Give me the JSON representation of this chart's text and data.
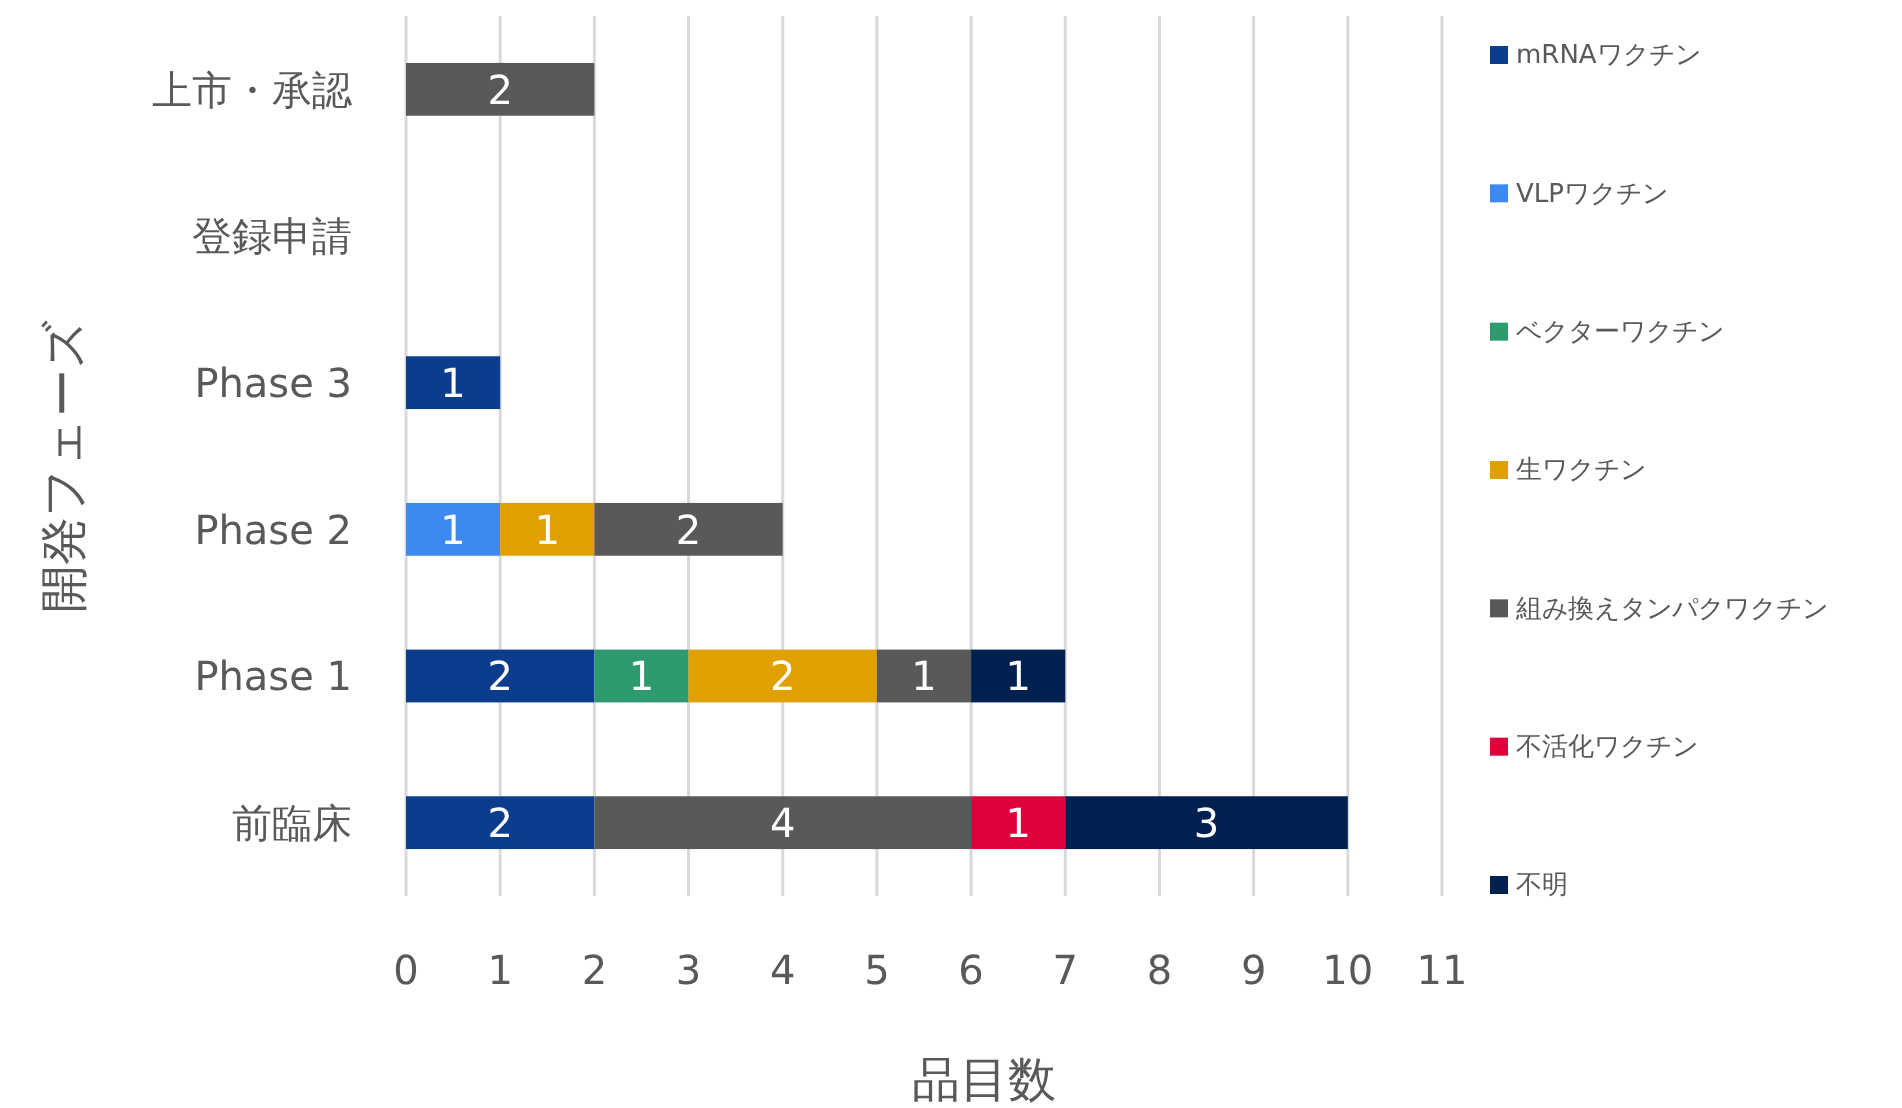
{
  "chart_data": {
    "type": "bar",
    "orientation": "horizontal",
    "stacked": true,
    "xlabel": "品目数",
    "ylabel": "開発フェーズ",
    "categories": [
      "上市・承認",
      "登録申請",
      "Phase 3",
      "Phase 2",
      "Phase 1",
      "前臨床"
    ],
    "series": [
      {
        "name": "mRNAワクチン",
        "color": "#0b3d8c",
        "values": [
          null,
          null,
          1,
          null,
          2,
          2
        ]
      },
      {
        "name": "VLPワクチン",
        "color": "#3c8af0",
        "values": [
          null,
          null,
          null,
          1,
          null,
          null
        ]
      },
      {
        "name": "ベクターワクチン",
        "color": "#2e9a6e",
        "values": [
          null,
          null,
          null,
          null,
          1,
          null
        ]
      },
      {
        "name": "生ワクチン",
        "color": "#e0a000",
        "values": [
          null,
          null,
          null,
          1,
          2,
          null
        ]
      },
      {
        "name": "組み換えタンパクワクチン",
        "color": "#595959",
        "values": [
          2,
          null,
          null,
          2,
          1,
          4
        ]
      },
      {
        "name": "不活化ワクチン",
        "color": "#e0003c",
        "values": [
          null,
          null,
          null,
          null,
          null,
          1
        ]
      },
      {
        "name": "不明",
        "color": "#00204f",
        "values": [
          null,
          null,
          null,
          null,
          1,
          3
        ]
      }
    ],
    "xlim": [
      0,
      11
    ],
    "xticks": [
      0,
      1,
      2,
      3,
      4,
      5,
      6,
      7,
      8,
      9,
      10,
      11
    ],
    "grid": "x",
    "legend": "right",
    "data_labels": true
  }
}
